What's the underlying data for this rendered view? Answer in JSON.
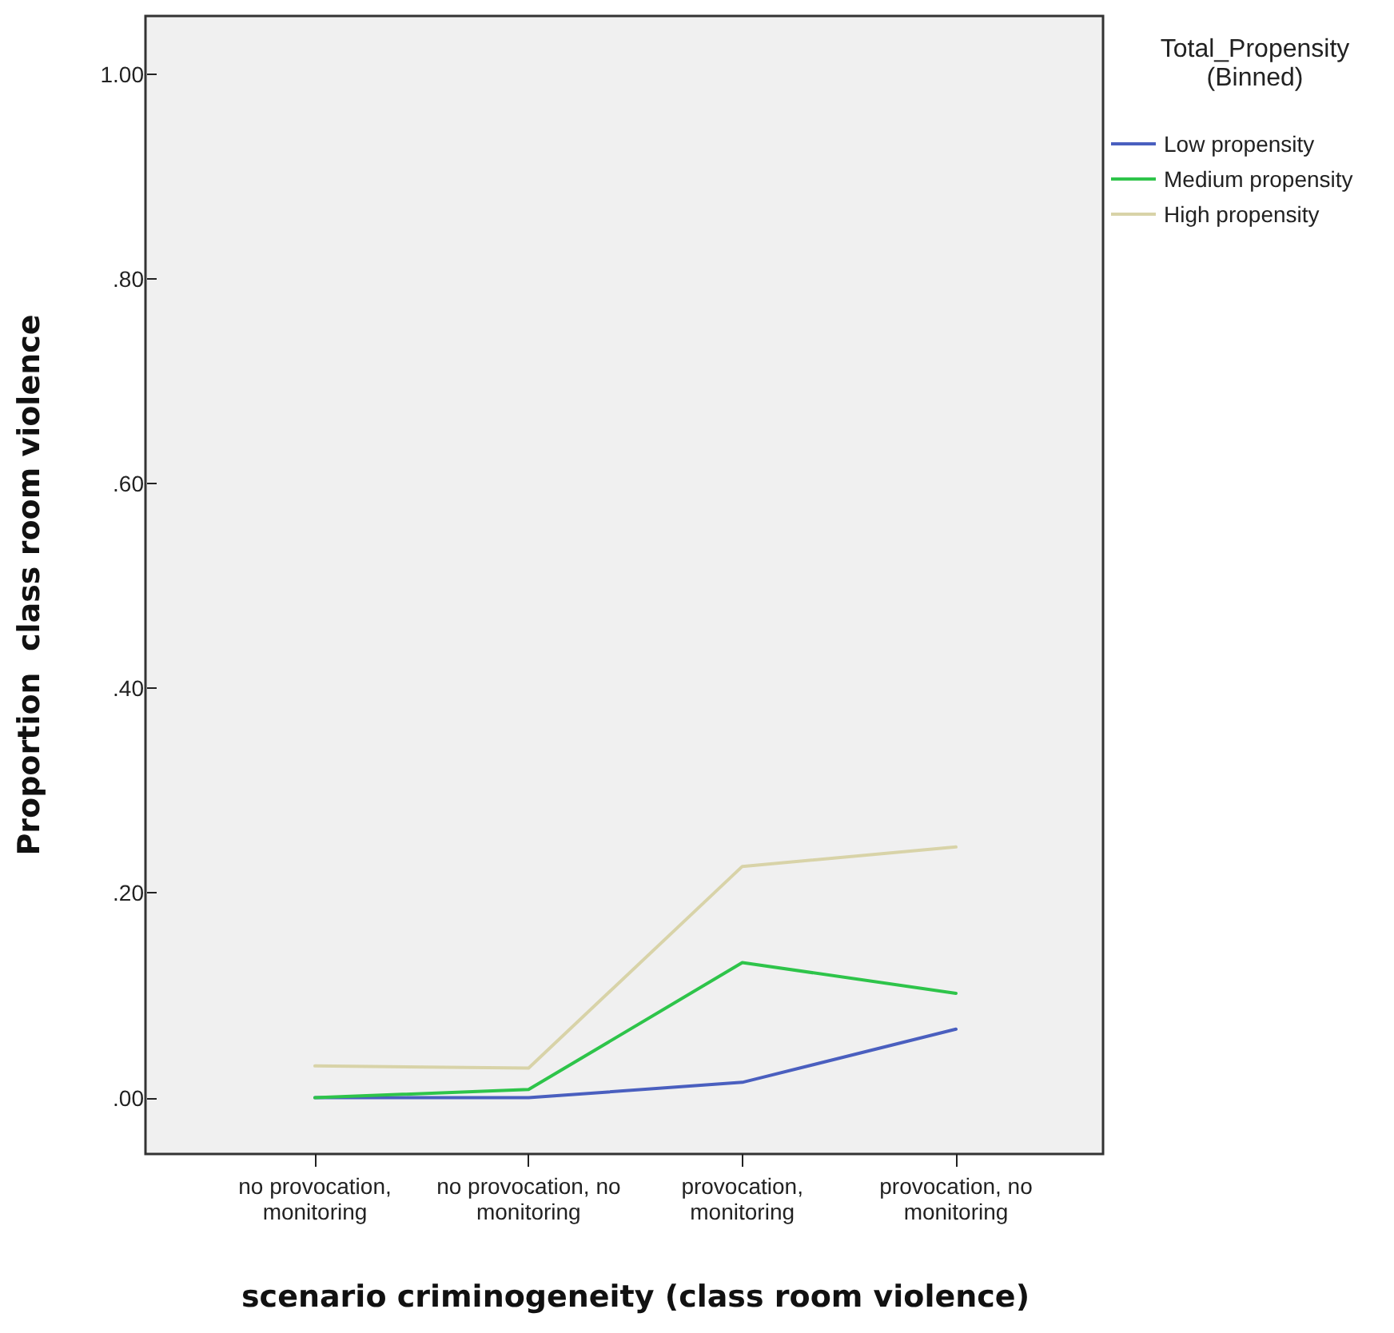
{
  "chart_data": {
    "type": "line",
    "xlabel": "scenario criminogeneity (class room violence)",
    "ylabel": "Proportion  class room violence",
    "legend_title": "Total_Propensity\n(Binned)",
    "categories": [
      "no provocation,\nmonitoring",
      "no provocation, no\nmonitoring",
      "provocation,\nmonitoring",
      "provocation, no\nmonitoring"
    ],
    "series": [
      {
        "name": "Low propensity",
        "color": "#4a5fbf",
        "values": [
          0.0,
          0.0,
          0.015,
          0.067
        ]
      },
      {
        "name": "Medium propensity",
        "color": "#2ec44a",
        "values": [
          0.0,
          0.008,
          0.132,
          0.102
        ]
      },
      {
        "name": "High propensity",
        "color": "#d8d3a8",
        "values": [
          0.031,
          0.029,
          0.226,
          0.245
        ]
      }
    ],
    "ylim": [
      -0.055,
      1.057
    ],
    "yticks": [
      {
        "value": 0,
        "label": ".00"
      },
      {
        "value": 0.2,
        "label": ".20"
      },
      {
        "value": 0.4,
        "label": ".40"
      },
      {
        "value": 0.6,
        "label": ".60"
      },
      {
        "value": 0.8,
        "label": ".80"
      },
      {
        "value": 1,
        "label": "1.00"
      }
    ],
    "grid": false,
    "legend": "right",
    "marker": "none",
    "line_style": "solid"
  }
}
